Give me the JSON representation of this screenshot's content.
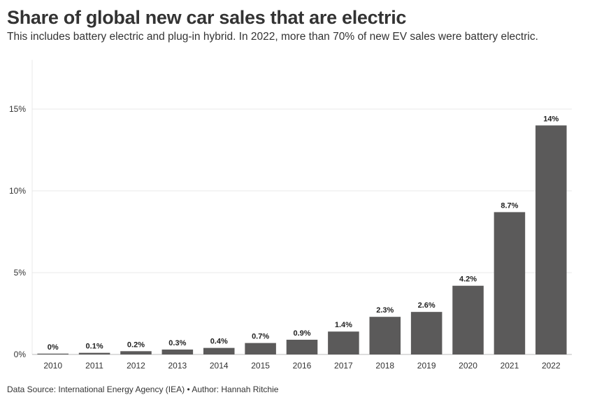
{
  "title": "Share of global new car sales that are electric",
  "subtitle": "This includes battery electric and plug-in hybrid. In 2022, more than 70% of new EV sales were battery electric.",
  "footer": "Data Source: International Energy Agency (IEA) • Author: Hannah Ritchie",
  "colors": {
    "bar": "#5b5a5a",
    "grid": "#e8e8e8",
    "axis": "#bbbbbb",
    "text": "#333333"
  },
  "chart_data": {
    "type": "bar",
    "categories": [
      "2010",
      "2011",
      "2012",
      "2013",
      "2014",
      "2015",
      "2016",
      "2017",
      "2018",
      "2019",
      "2020",
      "2021",
      "2022"
    ],
    "values": [
      0,
      0.1,
      0.2,
      0.3,
      0.4,
      0.7,
      0.9,
      1.4,
      2.3,
      2.6,
      4.2,
      8.7,
      14
    ],
    "data_labels": [
      "0%",
      "0.1%",
      "0.2%",
      "0.3%",
      "0.4%",
      "0.7%",
      "0.9%",
      "1.4%",
      "2.3%",
      "2.6%",
      "4.2%",
      "8.7%",
      "14%"
    ],
    "title": "Share of global new car sales that are electric",
    "xlabel": "",
    "ylabel": "",
    "ylim": [
      0,
      18
    ],
    "yticks": [
      0,
      5,
      10,
      15
    ],
    "ytick_labels": [
      "0%",
      "5%",
      "10%",
      "15%"
    ],
    "grid": true,
    "legend": "none"
  }
}
